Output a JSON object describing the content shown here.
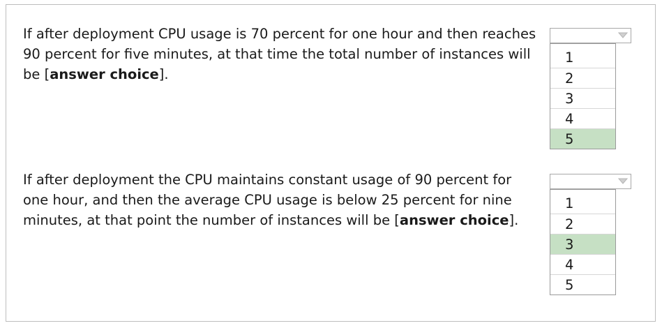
{
  "questions": [
    {
      "text_before": "If after deployment CPU usage is 70 percent for one hour and then reaches 90 percent for five minutes, at that time the total number of instances will be [",
      "answer_placeholder": "answer choice",
      "text_after": "].",
      "options": [
        "1",
        "2",
        "3",
        "4",
        "5"
      ],
      "selected_option": "5",
      "dropdown_icon": "chevron-down-icon"
    },
    {
      "text_before": "If after deployment the CPU maintains constant usage of 90 percent for one hour, and then the average CPU usage is below 25 percent for nine minutes, at that point the number of instances will be [",
      "answer_placeholder": "answer choice",
      "text_after": "].",
      "options": [
        "1",
        "2",
        "3",
        "4",
        "5"
      ],
      "selected_option": "3",
      "dropdown_icon": "chevron-down-icon"
    }
  ],
  "colors": {
    "selected_option_bg": "#c6e0c4",
    "border": "#bdbdbd",
    "text": "#1a1a1a"
  }
}
